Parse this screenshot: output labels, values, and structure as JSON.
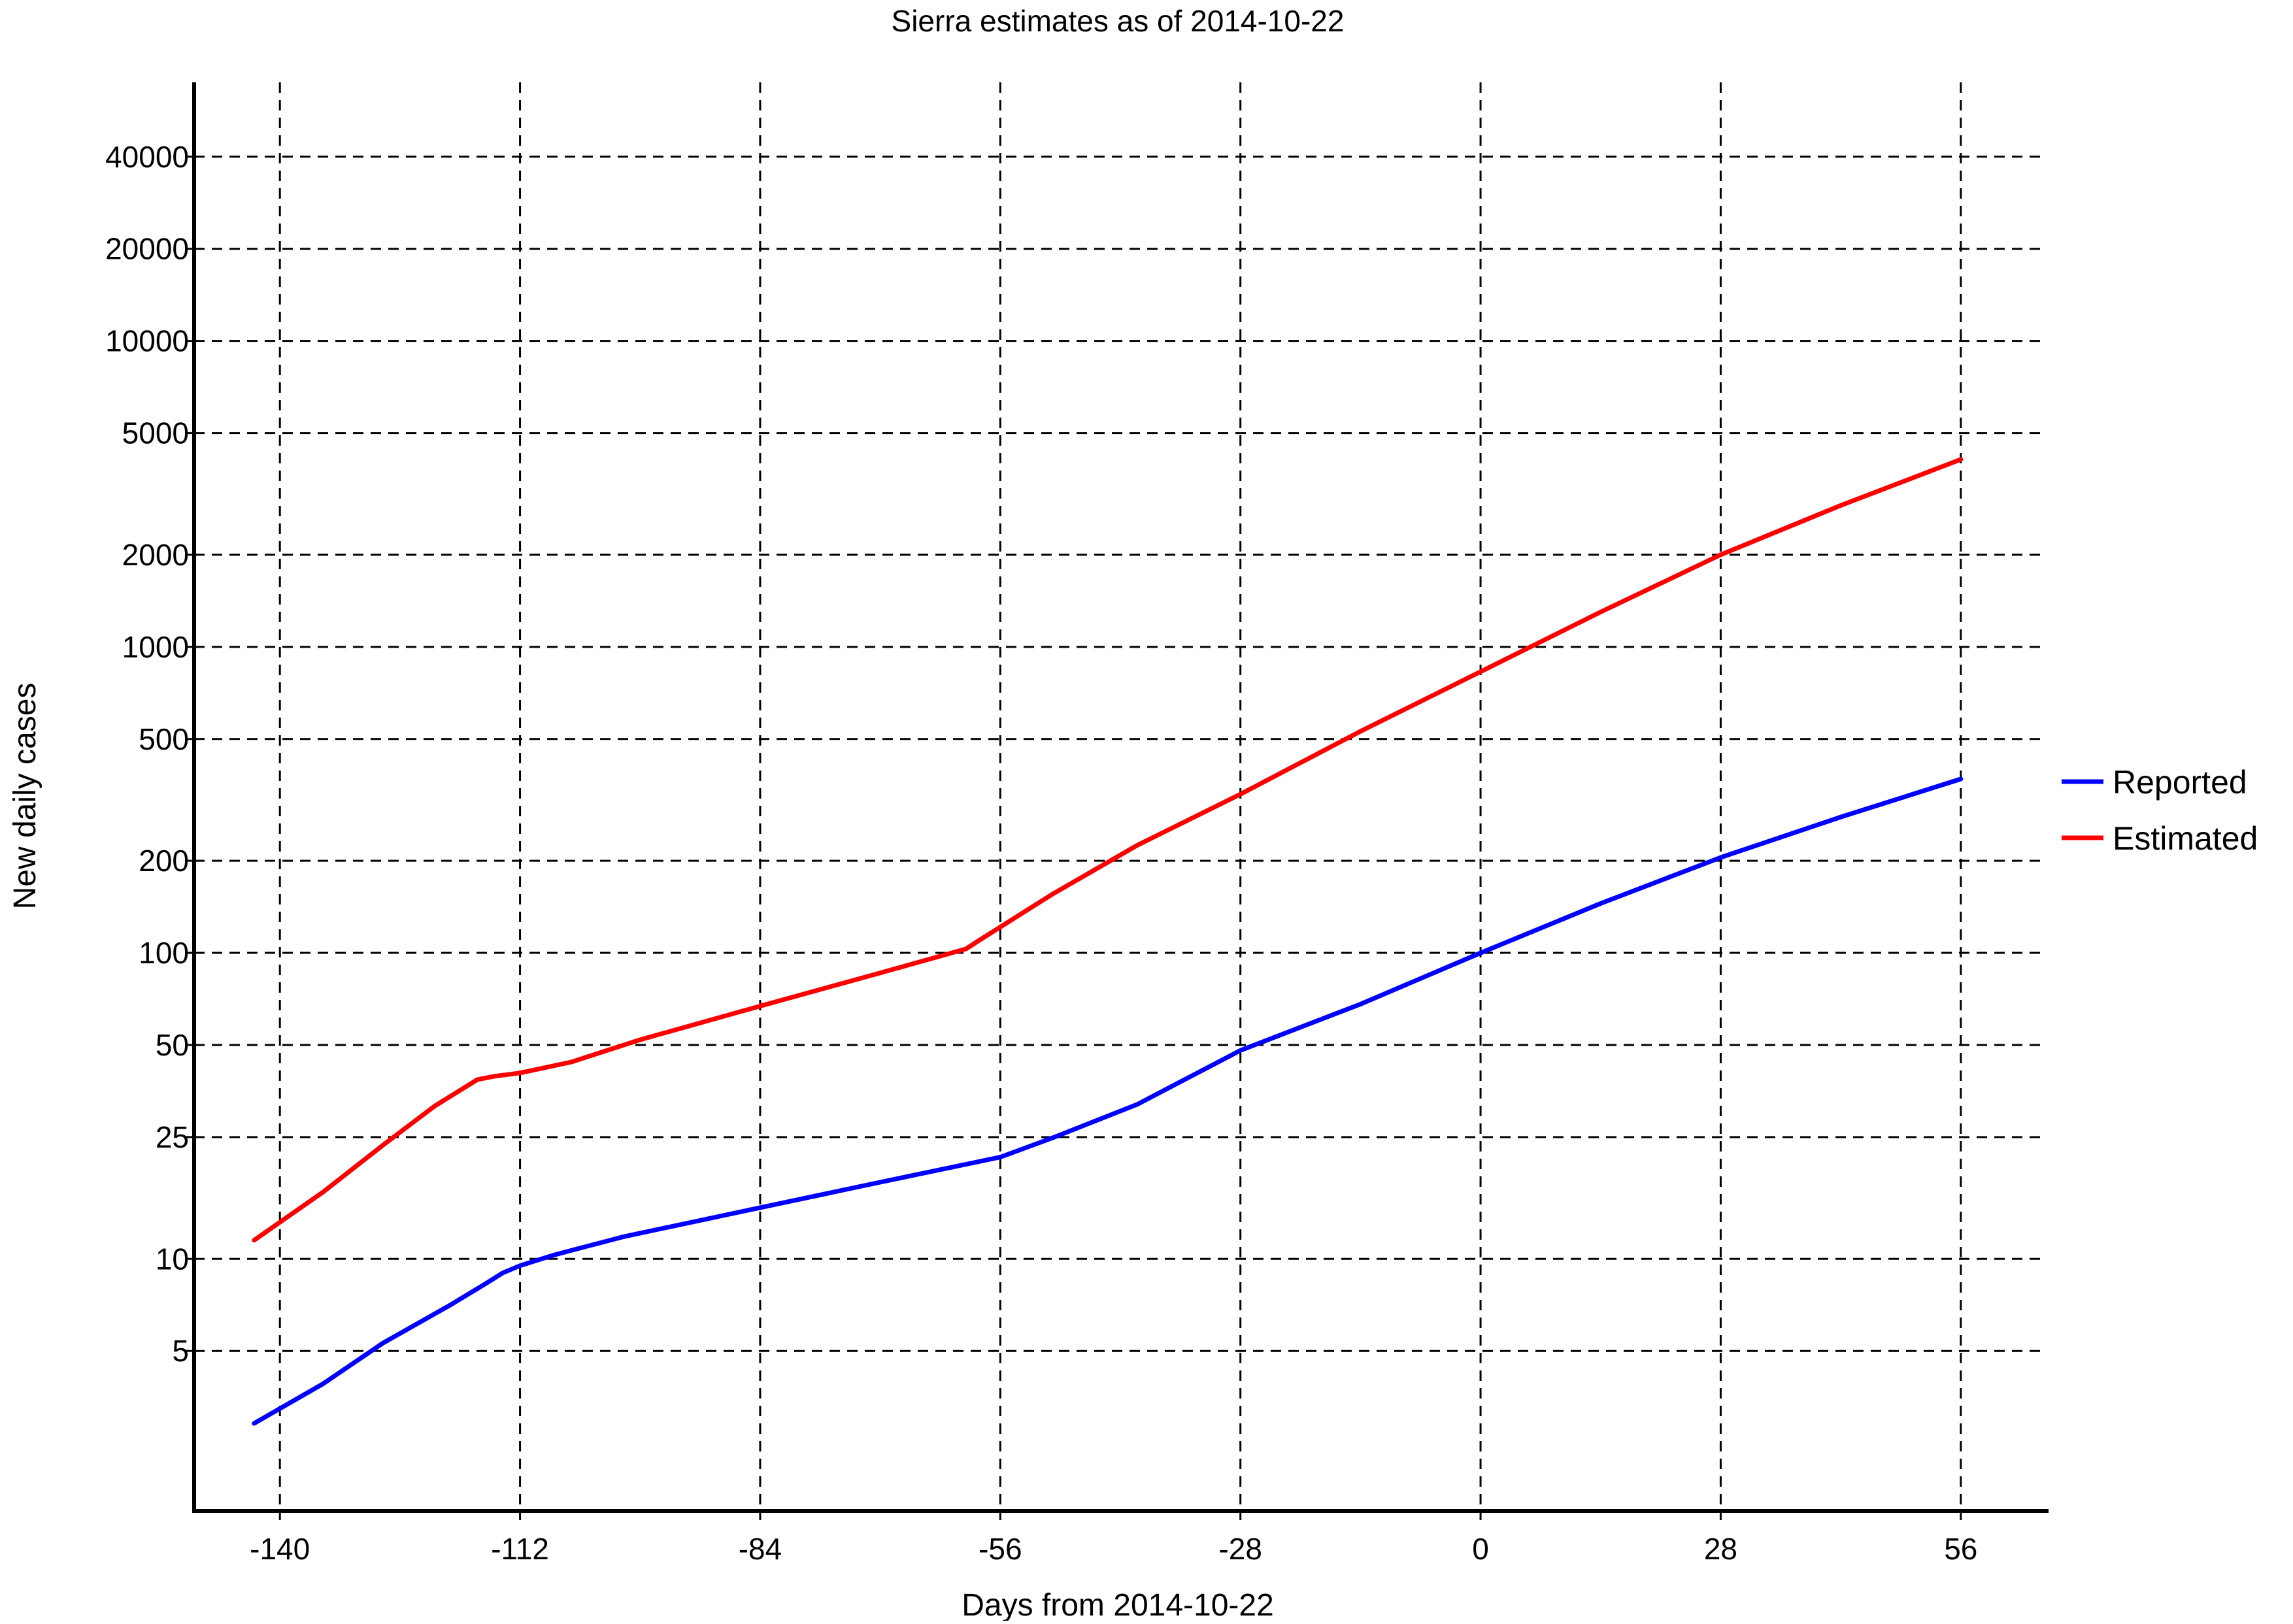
{
  "chart_data": {
    "type": "line",
    "title": "Sierra estimates as of 2014-10-22",
    "xlabel": "Days from 2014-10-22",
    "ylabel": "New daily cases",
    "x_ticks": [
      -140,
      -112,
      -84,
      -56,
      -28,
      0,
      28,
      56
    ],
    "x_tick_labels": [
      "-140",
      "-112",
      "-84",
      "-56",
      "-28",
      "0",
      "28",
      "56"
    ],
    "xlim": [
      -150,
      66
    ],
    "y_scale": "log",
    "y_ticks": [
      5,
      10,
      25,
      50,
      100,
      200,
      500,
      1000,
      2000,
      5000,
      10000,
      20000,
      40000
    ],
    "y_tick_labels": [
      "5",
      "10",
      "25",
      "50",
      "100",
      "200",
      "500",
      "1000",
      "2000",
      "5000",
      "10000",
      "20000",
      "40000"
    ],
    "ylim": [
      1.5,
      70000
    ],
    "grid": true,
    "legend_position": "right",
    "series": [
      {
        "name": "Reported",
        "color": "#0000ff",
        "x": [
          -143,
          -135,
          -128,
          -120,
          -116,
          -114,
          -112,
          -108,
          -100,
          -84,
          -70,
          -56,
          -50,
          -40,
          -28,
          -14,
          0,
          14,
          28,
          42,
          56
        ],
        "y": [
          2.9,
          3.9,
          5.3,
          7.1,
          8.3,
          9.0,
          9.5,
          10.3,
          11.8,
          14.7,
          17.8,
          21.5,
          24.8,
          32,
          48,
          68,
          100,
          145,
          205,
          278,
          370
        ]
      },
      {
        "name": "Estimated",
        "color": "#ff0000",
        "x": [
          -143,
          -135,
          -128,
          -122,
          -117,
          -115,
          -112,
          -106,
          -98,
          -84,
          -70,
          -60,
          -58,
          -50,
          -40,
          -28,
          -14,
          0,
          14,
          28,
          42,
          56
        ],
        "y": [
          11.5,
          16.5,
          23.5,
          31.5,
          38.5,
          39.5,
          40.5,
          44,
          52,
          67,
          86,
          103,
          112,
          155,
          225,
          330,
          530,
          830,
          1300,
          2000,
          2900,
          4100
        ]
      }
    ]
  }
}
